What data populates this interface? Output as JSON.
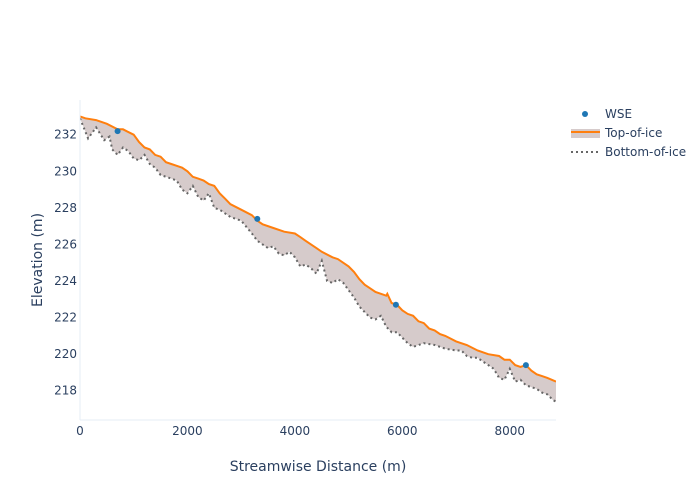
{
  "chart_data": {
    "type": "area",
    "xlabel": "Streamwise Distance (m)",
    "ylabel": "Elevation (m)",
    "xlim": [
      0,
      8860
    ],
    "ylim": [
      216.4,
      233.9
    ],
    "x_ticks": [
      0,
      2000,
      4000,
      6000,
      8000
    ],
    "y_ticks": [
      218,
      220,
      222,
      224,
      226,
      228,
      230,
      232
    ],
    "grid": false,
    "legend_position": "top-right",
    "colors": {
      "wse": "#1f77b4",
      "top_of_ice": "#ff7f0e",
      "bottom_of_ice": "#666666",
      "ice_fill": "rgba(180,160,160,0.55)"
    },
    "series": [
      {
        "name": "WSE",
        "mode": "markers",
        "x": [
          700,
          3300,
          5880,
          8300
        ],
        "y": [
          232.2,
          227.4,
          222.7,
          219.4
        ]
      },
      {
        "name": "Top-of-ice",
        "mode": "line",
        "x": [
          0,
          100,
          300,
          500,
          700,
          800,
          1000,
          1100,
          1200,
          1300,
          1400,
          1500,
          1600,
          1700,
          1800,
          1900,
          2000,
          2100,
          2200,
          2300,
          2400,
          2500,
          2600,
          2700,
          2800,
          3000,
          3200,
          3300,
          3400,
          3600,
          3800,
          4000,
          4100,
          4200,
          4400,
          4500,
          4700,
          4800,
          5000,
          5100,
          5200,
          5300,
          5400,
          5500,
          5600,
          5700,
          5720,
          5800,
          5900,
          6000,
          6100,
          6200,
          6300,
          6400,
          6500,
          6600,
          6700,
          6800,
          7000,
          7200,
          7400,
          7600,
          7800,
          7900,
          8000,
          8100,
          8200,
          8300,
          8400,
          8500,
          8600,
          8700,
          8860
        ],
        "y": [
          233.0,
          232.9,
          232.8,
          232.6,
          232.3,
          232.3,
          232.0,
          231.6,
          231.3,
          231.2,
          230.9,
          230.8,
          230.5,
          230.4,
          230.3,
          230.2,
          230.0,
          229.7,
          229.6,
          229.5,
          229.3,
          229.2,
          228.8,
          228.5,
          228.2,
          227.9,
          227.6,
          227.3,
          227.1,
          226.9,
          226.7,
          226.6,
          226.4,
          226.2,
          225.8,
          225.6,
          225.3,
          225.2,
          224.8,
          224.5,
          224.1,
          223.8,
          223.6,
          223.4,
          223.3,
          223.2,
          223.3,
          222.8,
          222.7,
          222.4,
          222.2,
          222.1,
          221.8,
          221.7,
          221.4,
          221.3,
          221.1,
          221.0,
          220.7,
          220.5,
          220.2,
          220.0,
          219.9,
          219.7,
          219.7,
          219.4,
          219.3,
          219.4,
          219.1,
          218.9,
          218.8,
          218.7,
          218.5
        ]
      },
      {
        "name": "Bottom-of-ice",
        "mode": "dotted-line",
        "x": [
          0,
          150,
          300,
          450,
          550,
          600,
          700,
          800,
          900,
          1000,
          1100,
          1200,
          1300,
          1400,
          1500,
          1600,
          1700,
          1800,
          1900,
          2000,
          2100,
          2200,
          2300,
          2400,
          2500,
          2600,
          2700,
          2800,
          3000,
          3200,
          3300,
          3400,
          3500,
          3600,
          3700,
          3800,
          3900,
          4000,
          4100,
          4200,
          4300,
          4400,
          4500,
          4600,
          4700,
          4800,
          4900,
          5000,
          5100,
          5200,
          5300,
          5400,
          5500,
          5600,
          5700,
          5800,
          5900,
          6000,
          6100,
          6200,
          6300,
          6400,
          6600,
          6800,
          7000,
          7100,
          7200,
          7300,
          7400,
          7500,
          7600,
          7700,
          7800,
          7900,
          8000,
          8100,
          8200,
          8300,
          8400,
          8500,
          8600,
          8700,
          8800,
          8860
        ],
        "y": [
          232.9,
          231.8,
          232.4,
          231.7,
          231.9,
          231.2,
          230.9,
          231.3,
          231.1,
          230.7,
          230.6,
          230.9,
          230.4,
          230.2,
          229.8,
          229.7,
          229.6,
          229.5,
          229.0,
          228.8,
          229.2,
          228.6,
          228.4,
          228.8,
          228.0,
          227.9,
          227.7,
          227.5,
          227.3,
          226.6,
          226.2,
          226.0,
          225.8,
          225.9,
          225.5,
          225.4,
          225.6,
          225.3,
          224.8,
          224.9,
          224.7,
          224.4,
          225.1,
          224.0,
          223.9,
          224.1,
          223.9,
          223.5,
          223.1,
          222.6,
          222.3,
          222.0,
          221.9,
          222.1,
          221.5,
          221.2,
          221.2,
          220.9,
          220.6,
          220.4,
          220.5,
          220.6,
          220.5,
          220.3,
          220.2,
          220.2,
          219.9,
          219.8,
          219.8,
          219.6,
          219.4,
          219.2,
          218.7,
          218.6,
          219.2,
          218.5,
          218.6,
          218.3,
          218.2,
          218.1,
          217.9,
          217.8,
          217.5,
          217.4
        ]
      }
    ]
  }
}
